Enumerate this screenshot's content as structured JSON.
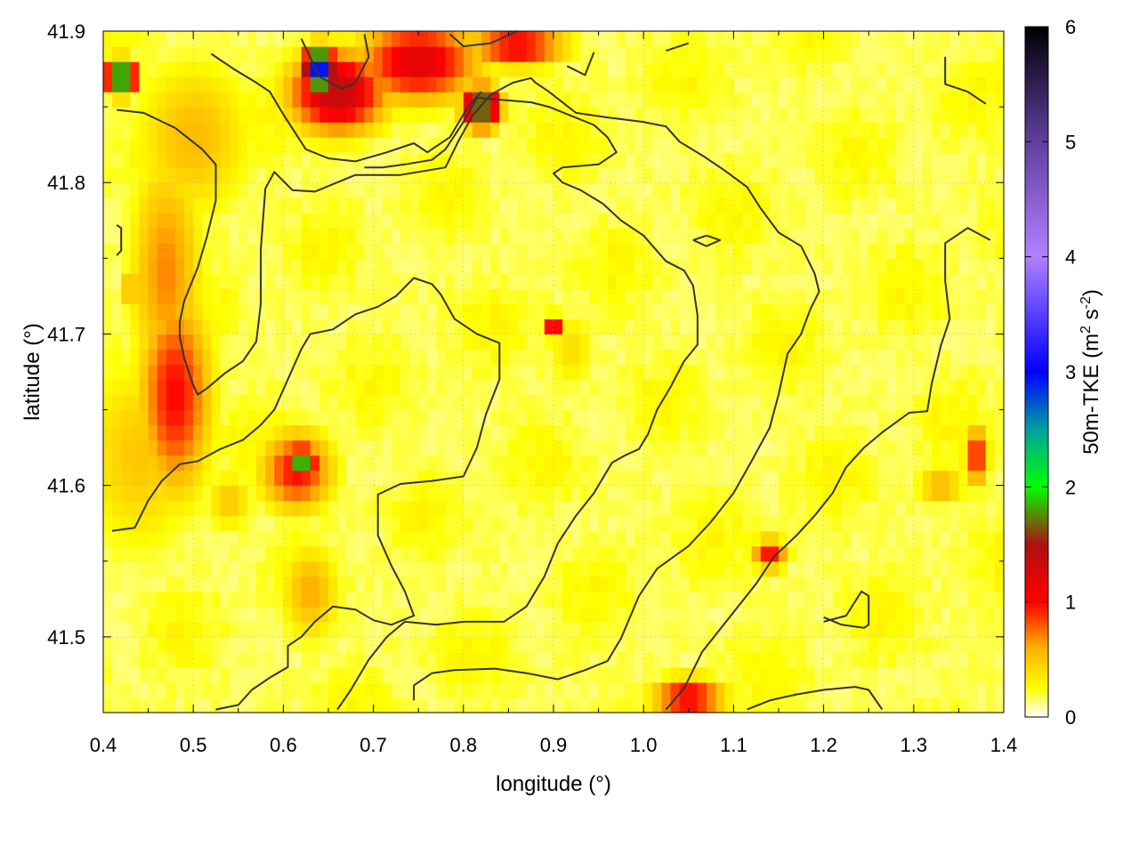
{
  "chart_data": {
    "type": "heatmap",
    "title": "",
    "xlabel": "longitude (°)",
    "ylabel": "latitude (°)",
    "xlim": [
      0.4,
      1.4
    ],
    "ylim": [
      41.45,
      41.9
    ],
    "x_ticks": [
      0.4,
      0.5,
      0.6,
      0.7,
      0.8,
      0.9,
      1.0,
      1.1,
      1.2,
      1.3,
      1.4
    ],
    "x_tick_labels": [
      "0.4",
      "0.5",
      "0.6",
      "0.7",
      "0.8",
      "0.9",
      "1.0",
      "1.1",
      "1.2",
      "1.3",
      "1.4"
    ],
    "y_ticks": [
      41.5,
      41.6,
      41.7,
      41.8,
      41.9
    ],
    "y_tick_labels": [
      "41.5",
      "41.6",
      "41.7",
      "41.8",
      "41.9"
    ],
    "grid": true,
    "colorbar": {
      "label": "50m-TKE (m",
      "label_sup1": "2",
      "label_mid": " s",
      "label_sup2": "-2",
      "label_end": ")",
      "range": [
        0,
        6
      ],
      "ticks": [
        0,
        1,
        2,
        3,
        4,
        5,
        6
      ],
      "tick_labels": [
        "0",
        "1",
        "2",
        "3",
        "4",
        "5",
        "6"
      ],
      "colormap": [
        {
          "v": 0.0,
          "color": "#ffffff"
        },
        {
          "v": 0.25,
          "color": "#ffff00"
        },
        {
          "v": 0.6,
          "color": "#ffb000"
        },
        {
          "v": 1.0,
          "color": "#ff0000"
        },
        {
          "v": 1.5,
          "color": "#b01010"
        },
        {
          "v": 2.0,
          "color": "#00ff00"
        },
        {
          "v": 2.5,
          "color": "#00a0a0"
        },
        {
          "v": 3.0,
          "color": "#0000ff"
        },
        {
          "v": 4.0,
          "color": "#b080ff"
        },
        {
          "v": 5.0,
          "color": "#6040a0"
        },
        {
          "v": 6.0,
          "color": "#000000"
        }
      ]
    },
    "hotspots": [
      {
        "x": 0.48,
        "y": 41.66,
        "sx": 0.03,
        "sy": 0.05,
        "v": 1.0
      },
      {
        "x": 0.47,
        "y": 41.74,
        "sx": 0.03,
        "sy": 0.06,
        "v": 0.7
      },
      {
        "x": 0.44,
        "y": 41.62,
        "sx": 0.05,
        "sy": 0.05,
        "v": 0.5
      },
      {
        "x": 0.5,
        "y": 41.83,
        "sx": 0.05,
        "sy": 0.04,
        "v": 0.55
      },
      {
        "x": 0.62,
        "y": 41.615,
        "sx": 0.012,
        "sy": 0.008,
        "v": 2.0
      },
      {
        "x": 0.615,
        "y": 41.61,
        "sx": 0.03,
        "sy": 0.02,
        "v": 1.0
      },
      {
        "x": 0.64,
        "y": 41.875,
        "sx": 0.012,
        "sy": 0.01,
        "v": 3.2
      },
      {
        "x": 0.66,
        "y": 41.86,
        "sx": 0.04,
        "sy": 0.02,
        "v": 1.4
      },
      {
        "x": 0.75,
        "y": 41.88,
        "sx": 0.05,
        "sy": 0.02,
        "v": 1.2
      },
      {
        "x": 0.86,
        "y": 41.89,
        "sx": 0.04,
        "sy": 0.01,
        "v": 1.1
      },
      {
        "x": 0.82,
        "y": 41.85,
        "sx": 0.015,
        "sy": 0.01,
        "v": 2.0
      },
      {
        "x": 0.42,
        "y": 41.87,
        "sx": 0.012,
        "sy": 0.008,
        "v": 2.4
      },
      {
        "x": 0.63,
        "y": 41.53,
        "sx": 0.025,
        "sy": 0.025,
        "v": 0.6
      },
      {
        "x": 0.54,
        "y": 41.59,
        "sx": 0.02,
        "sy": 0.015,
        "v": 0.5
      },
      {
        "x": 0.9,
        "y": 41.705,
        "sx": 0.008,
        "sy": 0.006,
        "v": 1.2
      },
      {
        "x": 0.92,
        "y": 41.69,
        "sx": 0.02,
        "sy": 0.02,
        "v": 0.4
      },
      {
        "x": 1.05,
        "y": 41.46,
        "sx": 0.03,
        "sy": 0.01,
        "v": 1.1
      },
      {
        "x": 1.14,
        "y": 41.555,
        "sx": 0.015,
        "sy": 0.008,
        "v": 1.0
      },
      {
        "x": 1.37,
        "y": 41.62,
        "sx": 0.01,
        "sy": 0.015,
        "v": 1.0
      },
      {
        "x": 1.33,
        "y": 41.6,
        "sx": 0.02,
        "sy": 0.01,
        "v": 0.6
      },
      {
        "x": 0.43,
        "y": 41.73,
        "sx": 0.008,
        "sy": 0.006,
        "v": 0.8
      },
      {
        "x": 0.89,
        "y": 41.63,
        "sx": 0.006,
        "sy": 0.005,
        "v": 0.6
      }
    ],
    "contours": [
      [
        [
          0.415,
          41.848
        ],
        [
          0.445,
          41.846
        ],
        [
          0.48,
          41.836
        ],
        [
          0.51,
          41.822
        ],
        [
          0.525,
          41.812
        ],
        [
          0.525,
          41.788
        ],
        [
          0.515,
          41.764
        ],
        [
          0.505,
          41.744
        ],
        [
          0.49,
          41.722
        ],
        [
          0.485,
          41.708
        ],
        [
          0.485,
          41.698
        ],
        [
          0.49,
          41.684
        ],
        [
          0.5,
          41.666
        ],
        [
          0.505,
          41.66
        ],
        [
          0.515,
          41.664
        ],
        [
          0.535,
          41.674
        ],
        [
          0.555,
          41.682
        ],
        [
          0.57,
          41.695
        ],
        [
          0.575,
          41.72
        ],
        [
          0.575,
          41.756
        ],
        [
          0.58,
          41.796
        ],
        [
          0.59,
          41.807
        ],
        [
          0.61,
          41.795
        ],
        [
          0.635,
          41.794
        ],
        [
          0.68,
          41.805
        ],
        [
          0.73,
          41.805
        ],
        [
          0.78,
          41.81
        ],
        [
          0.795,
          41.828
        ],
        [
          0.81,
          41.844
        ],
        [
          0.83,
          41.858
        ],
        [
          0.855,
          41.866
        ],
        [
          0.875,
          41.869
        ],
        [
          0.88,
          41.866
        ],
        [
          0.895,
          41.86
        ],
        [
          0.925,
          41.846
        ],
        [
          0.96,
          41.843
        ],
        [
          1.0,
          41.84
        ],
        [
          1.025,
          41.837
        ],
        [
          1.04,
          41.827
        ],
        [
          1.065,
          41.818
        ],
        [
          1.09,
          41.808
        ],
        [
          1.115,
          41.797
        ],
        [
          1.13,
          41.783
        ],
        [
          1.15,
          41.767
        ],
        [
          1.175,
          41.758
        ],
        [
          1.19,
          41.74
        ],
        [
          1.195,
          41.728
        ],
        [
          1.185,
          41.716
        ],
        [
          1.175,
          41.7
        ],
        [
          1.16,
          41.687
        ],
        [
          1.15,
          41.66
        ],
        [
          1.14,
          41.638
        ],
        [
          1.12,
          41.616
        ],
        [
          1.1,
          41.595
        ],
        [
          1.075,
          41.576
        ],
        [
          1.05,
          41.56
        ],
        [
          1.015,
          41.545
        ],
        [
          0.995,
          41.527
        ],
        [
          0.975,
          41.499
        ],
        [
          0.96,
          41.484
        ],
        [
          0.935,
          41.478
        ],
        [
          0.905,
          41.472
        ],
        [
          0.87,
          41.476
        ],
        [
          0.835,
          41.479
        ],
        [
          0.79,
          41.478
        ],
        [
          0.765,
          41.476
        ],
        [
          0.745,
          41.468
        ],
        [
          0.745,
          41.458
        ]
      ],
      [
        [
          0.41,
          41.57
        ],
        [
          0.435,
          41.572
        ],
        [
          0.45,
          41.59
        ],
        [
          0.465,
          41.603
        ],
        [
          0.485,
          41.614
        ],
        [
          0.505,
          41.616
        ],
        [
          0.53,
          41.624
        ],
        [
          0.555,
          41.63
        ],
        [
          0.575,
          41.64
        ],
        [
          0.59,
          41.65
        ],
        [
          0.605,
          41.67
        ],
        [
          0.62,
          41.69
        ],
        [
          0.63,
          41.7
        ],
        [
          0.655,
          41.703
        ],
        [
          0.68,
          41.713
        ],
        [
          0.705,
          41.718
        ],
        [
          0.725,
          41.725
        ],
        [
          0.745,
          41.737
        ],
        [
          0.765,
          41.733
        ],
        [
          0.775,
          41.726
        ],
        [
          0.79,
          41.71
        ],
        [
          0.815,
          41.7
        ],
        [
          0.84,
          41.694
        ],
        [
          0.84,
          41.67
        ],
        [
          0.825,
          41.647
        ],
        [
          0.815,
          41.625
        ],
        [
          0.8,
          41.606
        ],
        [
          0.765,
          41.603
        ],
        [
          0.73,
          41.601
        ],
        [
          0.705,
          41.594
        ],
        [
          0.705,
          41.567
        ],
        [
          0.72,
          41.547
        ],
        [
          0.735,
          41.53
        ],
        [
          0.745,
          41.514
        ],
        [
          0.72,
          41.508
        ],
        [
          0.7,
          41.511
        ],
        [
          0.68,
          41.518
        ],
        [
          0.655,
          41.52
        ],
        [
          0.635,
          41.51
        ],
        [
          0.62,
          41.5
        ],
        [
          0.605,
          41.494
        ],
        [
          0.605,
          41.48
        ],
        [
          0.585,
          41.473
        ],
        [
          0.565,
          41.465
        ],
        [
          0.55,
          41.455
        ],
        [
          0.525,
          41.452
        ]
      ],
      [
        [
          0.66,
          41.452
        ],
        [
          0.675,
          41.465
        ],
        [
          0.695,
          41.485
        ],
        [
          0.715,
          41.5
        ],
        [
          0.735,
          41.51
        ],
        [
          0.77,
          41.508
        ],
        [
          0.8,
          41.51
        ],
        [
          0.845,
          41.51
        ],
        [
          0.87,
          41.52
        ],
        [
          0.89,
          41.54
        ],
        [
          0.905,
          41.562
        ],
        [
          0.925,
          41.58
        ],
        [
          0.945,
          41.595
        ],
        [
          0.965,
          41.615
        ],
        [
          0.98,
          41.62
        ],
        [
          0.995,
          41.624
        ],
        [
          1.005,
          41.634
        ],
        [
          1.015,
          41.65
        ],
        [
          1.03,
          41.665
        ],
        [
          1.045,
          41.682
        ],
        [
          1.06,
          41.693
        ],
        [
          1.06,
          41.712
        ],
        [
          1.055,
          41.732
        ],
        [
          1.045,
          41.742
        ],
        [
          1.025,
          41.748
        ],
        [
          1.0,
          41.765
        ],
        [
          0.975,
          41.775
        ],
        [
          0.955,
          41.786
        ],
        [
          0.93,
          41.795
        ],
        [
          0.91,
          41.8
        ],
        [
          0.9,
          41.806
        ],
        [
          0.91,
          41.81
        ],
        [
          0.95,
          41.812
        ],
        [
          0.97,
          41.82
        ],
        [
          0.96,
          41.83
        ],
        [
          0.945,
          41.838
        ],
        [
          0.92,
          41.844
        ],
        [
          0.895,
          41.85
        ],
        [
          0.875,
          41.853
        ],
        [
          0.835,
          41.855
        ],
        [
          0.815,
          41.856
        ],
        [
          0.8,
          41.84
        ],
        [
          0.78,
          41.822
        ],
        [
          0.765,
          41.815
        ],
        [
          0.735,
          41.812
        ],
        [
          0.71,
          41.81
        ],
        [
          0.69,
          41.81
        ]
      ],
      [
        [
          1.025,
          41.452
        ],
        [
          1.045,
          41.466
        ],
        [
          1.065,
          41.49
        ],
        [
          1.085,
          41.505
        ],
        [
          1.105,
          41.52
        ],
        [
          1.125,
          41.535
        ],
        [
          1.145,
          41.553
        ],
        [
          1.17,
          41.567
        ],
        [
          1.19,
          41.58
        ],
        [
          1.21,
          41.595
        ],
        [
          1.225,
          41.612
        ],
        [
          1.245,
          41.625
        ],
        [
          1.265,
          41.635
        ],
        [
          1.295,
          41.648
        ],
        [
          1.315,
          41.649
        ],
        [
          1.32,
          41.667
        ],
        [
          1.33,
          41.692
        ],
        [
          1.34,
          41.71
        ],
        [
          1.335,
          41.735
        ],
        [
          1.335,
          41.76
        ],
        [
          1.36,
          41.77
        ],
        [
          1.385,
          41.762
        ]
      ],
      [
        [
          1.115,
          41.452
        ],
        [
          1.14,
          41.458
        ],
        [
          1.17,
          41.462
        ],
        [
          1.2,
          41.465
        ],
        [
          1.235,
          41.467
        ],
        [
          1.25,
          41.465
        ],
        [
          1.265,
          41.452
        ]
      ],
      [
        [
          1.2,
          41.513
        ],
        [
          1.22,
          41.508
        ],
        [
          1.245,
          41.506
        ],
        [
          1.25,
          41.508
        ],
        [
          1.25,
          41.527
        ],
        [
          1.242,
          41.53
        ],
        [
          1.225,
          41.514
        ],
        [
          1.2,
          41.51
        ]
      ],
      [
        [
          1.055,
          41.762
        ],
        [
          1.07,
          41.765
        ],
        [
          1.085,
          41.762
        ],
        [
          1.07,
          41.758
        ],
        [
          1.055,
          41.762
        ]
      ],
      [
        [
          0.915,
          41.877
        ],
        [
          0.935,
          41.871
        ],
        [
          0.945,
          41.886
        ]
      ],
      [
        [
          1.335,
          41.883
        ],
        [
          1.335,
          41.865
        ],
        [
          1.36,
          41.86
        ],
        [
          1.38,
          41.852
        ]
      ],
      [
        [
          0.415,
          41.772
        ],
        [
          0.42,
          41.77
        ],
        [
          0.42,
          41.755
        ],
        [
          0.415,
          41.752
        ]
      ],
      [
        [
          0.52,
          41.885
        ],
        [
          0.545,
          41.875
        ],
        [
          0.57,
          41.866
        ],
        [
          0.585,
          41.86
        ],
        [
          0.6,
          41.845
        ],
        [
          0.625,
          41.822
        ],
        [
          0.65,
          41.816
        ],
        [
          0.68,
          41.814
        ],
        [
          0.715,
          41.82
        ],
        [
          0.745,
          41.826
        ],
        [
          0.76,
          41.82
        ],
        [
          0.785,
          41.83
        ],
        [
          0.805,
          41.85
        ],
        [
          0.82,
          41.86
        ]
      ],
      [
        [
          0.62,
          41.895
        ],
        [
          0.64,
          41.87
        ],
        [
          0.665,
          41.862
        ],
        [
          0.68,
          41.866
        ],
        [
          0.695,
          41.883
        ],
        [
          0.69,
          41.898
        ]
      ],
      [
        [
          0.785,
          41.898
        ],
        [
          0.8,
          41.89
        ],
        [
          0.83,
          41.892
        ],
        [
          0.86,
          41.9
        ]
      ],
      [
        [
          1.025,
          41.887
        ],
        [
          1.05,
          41.892
        ]
      ]
    ]
  }
}
